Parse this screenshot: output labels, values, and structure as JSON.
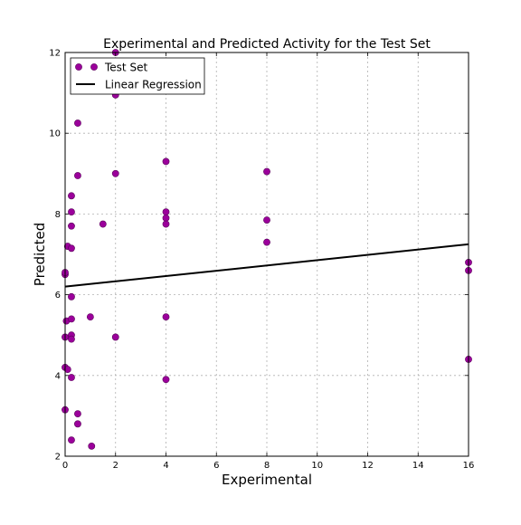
{
  "chart_data": {
    "type": "scatter",
    "title": "Experimental and Predicted Activity for the Test Set",
    "xlabel": "Experimental",
    "ylabel": "Predicted",
    "xlim": [
      0,
      16
    ],
    "ylim": [
      2,
      12
    ],
    "xticks": [
      0,
      2,
      4,
      6,
      8,
      10,
      12,
      14,
      16
    ],
    "yticks": [
      2,
      4,
      6,
      8,
      10,
      12
    ],
    "grid": true,
    "legend_position": "top-left",
    "series": [
      {
        "name": "Test Set",
        "kind": "points",
        "color": "#9b009b",
        "points": [
          {
            "x": 0.0,
            "y": 3.15
          },
          {
            "x": 0.0,
            "y": 4.2
          },
          {
            "x": 0.0,
            "y": 4.95
          },
          {
            "x": 0.0,
            "y": 6.5
          },
          {
            "x": 0.0,
            "y": 6.55
          },
          {
            "x": 0.05,
            "y": 5.35
          },
          {
            "x": 0.1,
            "y": 7.2
          },
          {
            "x": 0.1,
            "y": 4.15
          },
          {
            "x": 0.25,
            "y": 7.15
          },
          {
            "x": 0.25,
            "y": 8.45
          },
          {
            "x": 0.25,
            "y": 8.05
          },
          {
            "x": 0.25,
            "y": 7.7
          },
          {
            "x": 0.25,
            "y": 5.95
          },
          {
            "x": 0.25,
            "y": 5.4
          },
          {
            "x": 0.25,
            "y": 5.0
          },
          {
            "x": 0.25,
            "y": 4.9
          },
          {
            "x": 0.25,
            "y": 3.95
          },
          {
            "x": 0.25,
            "y": 2.4
          },
          {
            "x": 0.5,
            "y": 10.25
          },
          {
            "x": 0.5,
            "y": 8.95
          },
          {
            "x": 0.5,
            "y": 3.05
          },
          {
            "x": 0.5,
            "y": 2.8
          },
          {
            "x": 1.0,
            "y": 5.45
          },
          {
            "x": 1.05,
            "y": 2.25
          },
          {
            "x": 1.5,
            "y": 7.75
          },
          {
            "x": 2.0,
            "y": 12.0
          },
          {
            "x": 2.0,
            "y": 10.95
          },
          {
            "x": 2.0,
            "y": 9.0
          },
          {
            "x": 2.0,
            "y": 4.95
          },
          {
            "x": 4.0,
            "y": 9.3
          },
          {
            "x": 4.0,
            "y": 8.05
          },
          {
            "x": 4.0,
            "y": 7.9
          },
          {
            "x": 4.0,
            "y": 7.75
          },
          {
            "x": 4.0,
            "y": 5.45
          },
          {
            "x": 4.0,
            "y": 3.9
          },
          {
            "x": 8.0,
            "y": 9.05
          },
          {
            "x": 8.0,
            "y": 7.85
          },
          {
            "x": 8.0,
            "y": 7.3
          },
          {
            "x": 16.0,
            "y": 6.8
          },
          {
            "x": 16.0,
            "y": 6.6
          },
          {
            "x": 16.0,
            "y": 4.4
          }
        ]
      },
      {
        "name": "Linear Regression",
        "kind": "line",
        "color": "#000000",
        "points": [
          {
            "x": 0,
            "y": 6.2
          },
          {
            "x": 16,
            "y": 7.25
          }
        ]
      }
    ]
  }
}
